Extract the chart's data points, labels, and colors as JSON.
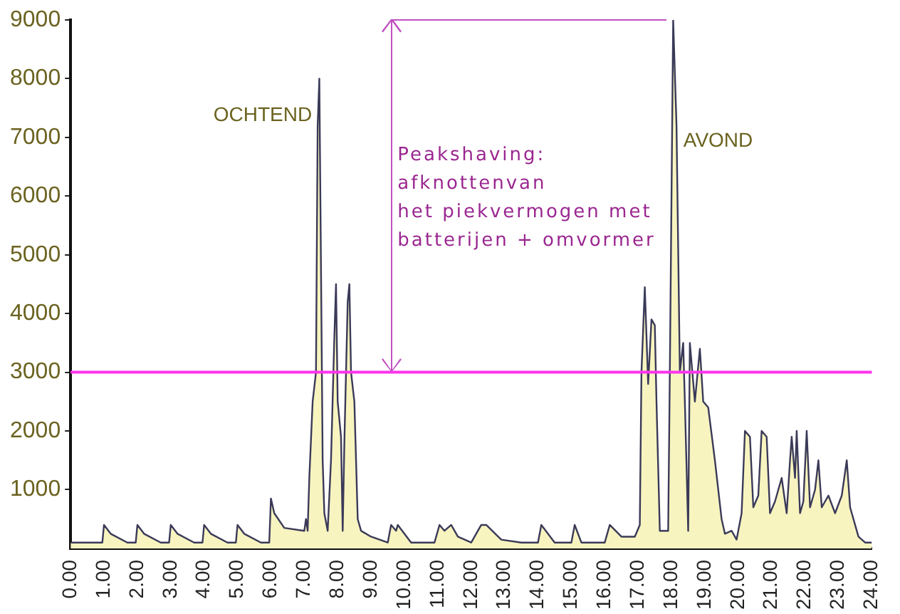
{
  "chart_data": {
    "type": "area",
    "x": [
      0,
      0.95,
      1,
      1.2,
      1.7,
      1.95,
      2,
      2.2,
      2.7,
      2.95,
      3,
      3.2,
      3.7,
      3.95,
      4,
      4.2,
      4.7,
      4.95,
      5,
      5.2,
      5.7,
      5.95,
      6,
      6.1,
      6.4,
      7,
      7.05,
      7.1,
      7.15,
      7.25,
      7.35,
      7.4,
      7.45,
      7.5,
      7.55,
      7.6,
      7.7,
      7.8,
      7.9,
      7.95,
      8,
      8.1,
      8.15,
      8.2,
      8.3,
      8.35,
      8.4,
      8.5,
      8.6,
      8.7,
      9,
      9.5,
      9.6,
      9.75,
      9.8,
      10.2,
      10.9,
      11.05,
      11.2,
      11.4,
      11.6,
      12,
      12.3,
      12.45,
      12.9,
      13.5,
      14,
      14.1,
      14.5,
      15,
      15.1,
      15.3,
      16,
      16.15,
      16.5,
      16.9,
      17.05,
      17.1,
      17.2,
      17.3,
      17.4,
      17.5,
      17.55,
      17.65,
      17.9,
      17.95,
      18.05,
      18.15,
      18.25,
      18.35,
      18.4,
      18.5,
      18.55,
      18.7,
      18.85,
      18.95,
      19.1,
      19.3,
      19.5,
      19.6,
      19.8,
      19.95,
      20.1,
      20.2,
      20.35,
      20.45,
      20.6,
      20.7,
      20.85,
      20.95,
      21.1,
      21.3,
      21.45,
      21.55,
      21.6,
      21.7,
      21.75,
      21.85,
      21.95,
      22.05,
      22.15,
      22.3,
      22.4,
      22.5,
      22.7,
      22.9,
      23.1,
      23.25,
      23.35,
      23.6,
      23.8,
      24
    ],
    "series": [
      {
        "color": "#f8f4c0",
        "values": [
          100,
          100,
          400,
          250,
          100,
          100,
          400,
          250,
          100,
          100,
          400,
          250,
          100,
          100,
          400,
          250,
          100,
          100,
          400,
          250,
          100,
          100,
          850,
          600,
          350,
          300,
          500,
          300,
          1200,
          2500,
          3000,
          7200,
          8000,
          4800,
          1500,
          600,
          300,
          1500,
          3600,
          4500,
          2500,
          1900,
          300,
          1800,
          4200,
          4500,
          3000,
          2500,
          500,
          300,
          200,
          100,
          400,
          300,
          400,
          100,
          100,
          400,
          300,
          400,
          200,
          100,
          400,
          400,
          150,
          100,
          100,
          400,
          100,
          100,
          400,
          100,
          100,
          400,
          200,
          200,
          400,
          3000,
          4450,
          2800,
          3900,
          3800,
          2500,
          300,
          300,
          3000,
          9000,
          7200,
          3000,
          3500,
          2500,
          300,
          3500,
          2500,
          3400,
          2500,
          2400,
          1500,
          500,
          250,
          300,
          150,
          600,
          2000,
          1900,
          700,
          900,
          2000,
          1900,
          600,
          800,
          1200,
          600,
          1500,
          1900,
          1200,
          2000,
          600,
          800,
          2000,
          700,
          1000,
          1500,
          700,
          900,
          600,
          900,
          1500,
          700,
          200,
          100,
          100
        ]
      }
    ],
    "xlim": [
      0,
      24
    ],
    "xticks": [
      {
        "value": 0,
        "label": "0.00"
      },
      {
        "value": 1,
        "label": "1.00"
      },
      {
        "value": 2,
        "label": "2.00"
      },
      {
        "value": 3,
        "label": "3.00"
      },
      {
        "value": 4,
        "label": "4.00"
      },
      {
        "value": 5,
        "label": "5.00"
      },
      {
        "value": 6,
        "label": "6.00"
      },
      {
        "value": 7,
        "label": "7.00"
      },
      {
        "value": 8,
        "label": "8.00"
      },
      {
        "value": 9,
        "label": "9.00"
      },
      {
        "value": 10,
        "label": "10.00"
      },
      {
        "value": 11,
        "label": "11.00"
      },
      {
        "value": 12,
        "label": "12.00"
      },
      {
        "value": 13,
        "label": "13.00"
      },
      {
        "value": 14,
        "label": "14.00"
      },
      {
        "value": 15,
        "label": "15.00"
      },
      {
        "value": 16,
        "label": "16.00"
      },
      {
        "value": 17,
        "label": "17.00"
      },
      {
        "value": 18,
        "label": "18.00"
      },
      {
        "value": 19,
        "label": "19.00"
      },
      {
        "value": 20,
        "label": "20.00"
      },
      {
        "value": 21,
        "label": "21.00"
      },
      {
        "value": 22,
        "label": "22.00"
      },
      {
        "value": 23,
        "label": "23.00"
      },
      {
        "value": 24,
        "label": "24.00"
      }
    ],
    "ylim": [
      0,
      9000
    ],
    "yticks": [
      1000,
      2000,
      3000,
      4000,
      5000,
      6000,
      7000,
      8000,
      9000
    ],
    "ref_lines": [
      {
        "axis": "y",
        "value": 3000,
        "color": "#ff33ee"
      }
    ],
    "annotations": [
      {
        "text": "OCHTEND",
        "x": 7.4,
        "y": 7200
      },
      {
        "text": "AVOND",
        "x": 18.1,
        "y": 7200
      },
      "Peakshaving:\nafknottenvan\nhet piekvermogen met\nbatterijen + omvormer"
    ],
    "grid": false,
    "legend": false,
    "marker": "none",
    "line_style": "solid"
  }
}
